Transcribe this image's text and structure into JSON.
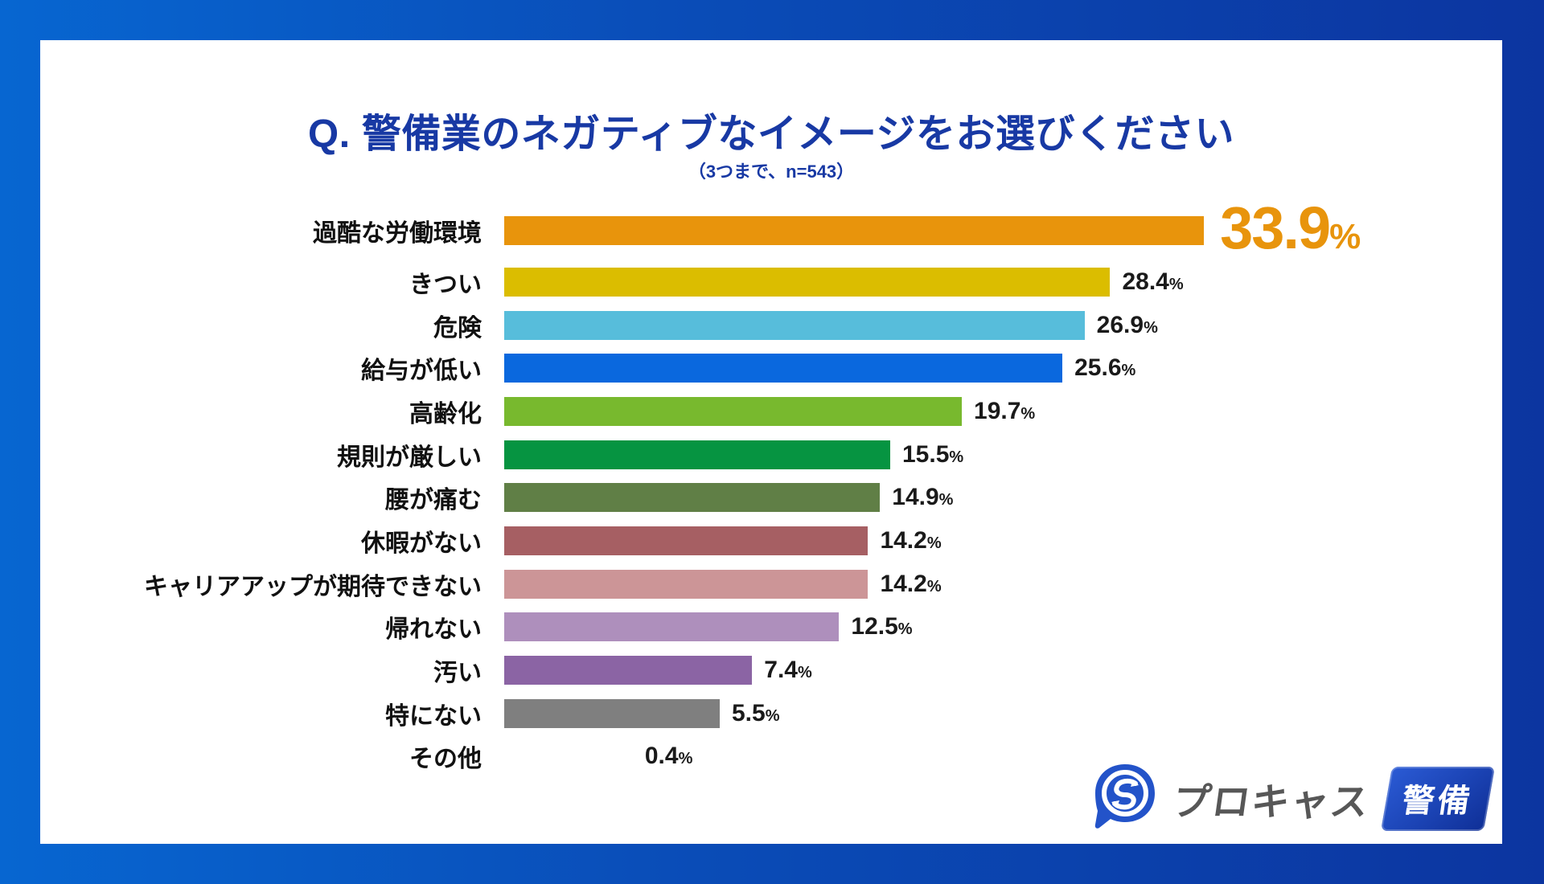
{
  "header": {
    "title": "Q. 警備業のネガティブなイメージをお選びください",
    "subtitle": "（3つまで、n=543）"
  },
  "chart_data": {
    "type": "bar",
    "orientation": "horizontal",
    "title": "Q. 警備業のネガティブなイメージをお選びください",
    "subtitle": "（3つまで、n=543）",
    "sample_size": 543,
    "unit": "%",
    "title_color": "#1839a4",
    "emphasis_value_color": "#e8940c",
    "value_text_color": "#1a1a1a",
    "categories": [
      "過酷な労働環境",
      "きつい",
      "危険",
      "給与が低い",
      "高齢化",
      "規則が厳しい",
      "腰が痛む",
      "休暇がない",
      "キャリアアップが期待できない",
      "帰れない",
      "汚い",
      "特にない",
      "その他"
    ],
    "values": [
      33.9,
      28.4,
      26.9,
      25.6,
      19.7,
      15.5,
      14.9,
      14.2,
      14.2,
      12.5,
      7.4,
      5.5,
      0.4
    ],
    "rows": [
      {
        "label": "過酷な労働環境",
        "value": "33.9",
        "unit": "%",
        "color": "#e8940c",
        "emphasis": true,
        "bar_visible": true
      },
      {
        "label": "きつい",
        "value": "28.4",
        "unit": "%",
        "color": "#dbbd00",
        "emphasis": false,
        "bar_visible": true
      },
      {
        "label": "危険",
        "value": "26.9",
        "unit": "%",
        "color": "#57bddb",
        "emphasis": false,
        "bar_visible": true
      },
      {
        "label": "給与が低い",
        "value": "25.6",
        "unit": "%",
        "color": "#0a68de",
        "emphasis": false,
        "bar_visible": true
      },
      {
        "label": "高齢化",
        "value": "19.7",
        "unit": "%",
        "color": "#78b92e",
        "emphasis": false,
        "bar_visible": true
      },
      {
        "label": "規則が厳しい",
        "value": "15.5",
        "unit": "%",
        "color": "#069441",
        "emphasis": false,
        "bar_visible": true
      },
      {
        "label": "腰が痛む",
        "value": "14.9",
        "unit": "%",
        "color": "#607f46",
        "emphasis": false,
        "bar_visible": true
      },
      {
        "label": "休暇がない",
        "value": "14.2",
        "unit": "%",
        "color": "#a65f63",
        "emphasis": false,
        "bar_visible": true
      },
      {
        "label": "キャリアアップが期待できない",
        "value": "14.2",
        "unit": "%",
        "color": "#cc9597",
        "emphasis": false,
        "bar_visible": true
      },
      {
        "label": "帰れない",
        "value": "12.5",
        "unit": "%",
        "color": "#ae8fbc",
        "emphasis": false,
        "bar_visible": true
      },
      {
        "label": "汚い",
        "value": "7.4",
        "unit": "%",
        "color": "#8b64a4",
        "emphasis": false,
        "bar_visible": true
      },
      {
        "label": "特にない",
        "value": "5.5",
        "unit": "%",
        "color": "#7f7f7f",
        "emphasis": false,
        "bar_visible": true
      },
      {
        "label": "その他",
        "value": "0.4",
        "unit": "%",
        "color": null,
        "emphasis": false,
        "bar_visible": false
      }
    ]
  },
  "footer": {
    "logo_text": "プロキャス",
    "logo_badge": "警備",
    "logo_icon": "procas-s-speech-bubble-icon",
    "logo_text_color": "#575757",
    "logo_badge_color": "#1b43b4"
  }
}
